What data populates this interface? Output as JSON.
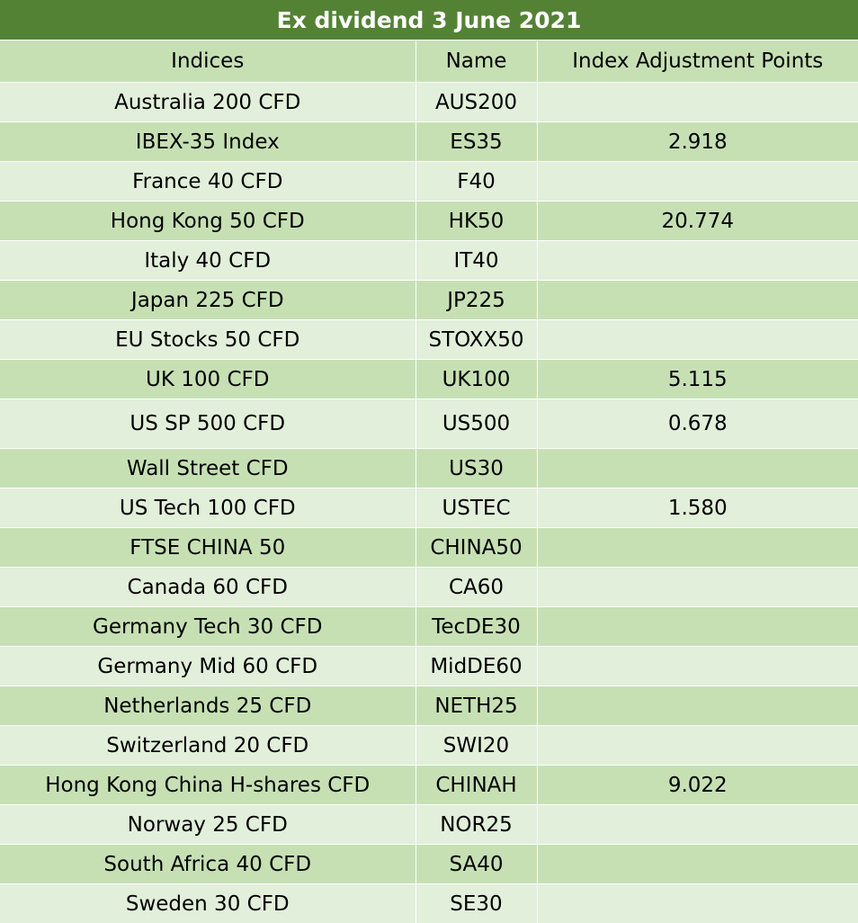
{
  "title": "Ex dividend 3 June 2021",
  "columns": [
    "Indices",
    "Name",
    "Index Adjustment Points"
  ],
  "rows": [
    {
      "index": "Australia 200 CFD",
      "name": "AUS200",
      "points": ""
    },
    {
      "index": "IBEX-35 Index",
      "name": "ES35",
      "points": "2.918"
    },
    {
      "index": "France 40 CFD",
      "name": "F40",
      "points": ""
    },
    {
      "index": "Hong Kong 50 CFD",
      "name": "HK50",
      "points": "20.774"
    },
    {
      "index": "Italy 40 CFD",
      "name": "IT40",
      "points": ""
    },
    {
      "index": "Japan 225 CFD",
      "name": "JP225",
      "points": ""
    },
    {
      "index": "EU Stocks 50 CFD",
      "name": "STOXX50",
      "points": ""
    },
    {
      "index": "UK 100 CFD",
      "name": "UK100",
      "points": "5.115"
    },
    {
      "index": "US SP 500 CFD",
      "name": "US500",
      "points": "0.678"
    },
    {
      "index": "Wall Street CFD",
      "name": "US30",
      "points": ""
    },
    {
      "index": "US Tech 100 CFD",
      "name": "USTEC",
      "points": "1.580"
    },
    {
      "index": "FTSE CHINA 50",
      "name": "CHINA50",
      "points": ""
    },
    {
      "index": "Canada 60 CFD",
      "name": "CA60",
      "points": ""
    },
    {
      "index": "Germany Tech 30 CFD",
      "name": "TecDE30",
      "points": ""
    },
    {
      "index": "Germany Mid 60 CFD",
      "name": "MidDE60",
      "points": ""
    },
    {
      "index": "Netherlands 25 CFD",
      "name": "NETH25",
      "points": ""
    },
    {
      "index": "Switzerland 20 CFD",
      "name": "SWI20",
      "points": ""
    },
    {
      "index": "Hong Kong China H-shares CFD",
      "name": "CHINAH",
      "points": "9.022"
    },
    {
      "index": "Norway 25 CFD",
      "name": "NOR25",
      "points": ""
    },
    {
      "index": "South Africa 40 CFD",
      "name": "SA40",
      "points": ""
    },
    {
      "index": "Sweden 30 CFD",
      "name": "SE30",
      "points": ""
    }
  ],
  "colors": {
    "title_background": "#548235",
    "title_text": "#ffffff",
    "band_dark": "#c6e0b4",
    "band_light": "#e2efda",
    "grid_line": "#ffffff"
  }
}
